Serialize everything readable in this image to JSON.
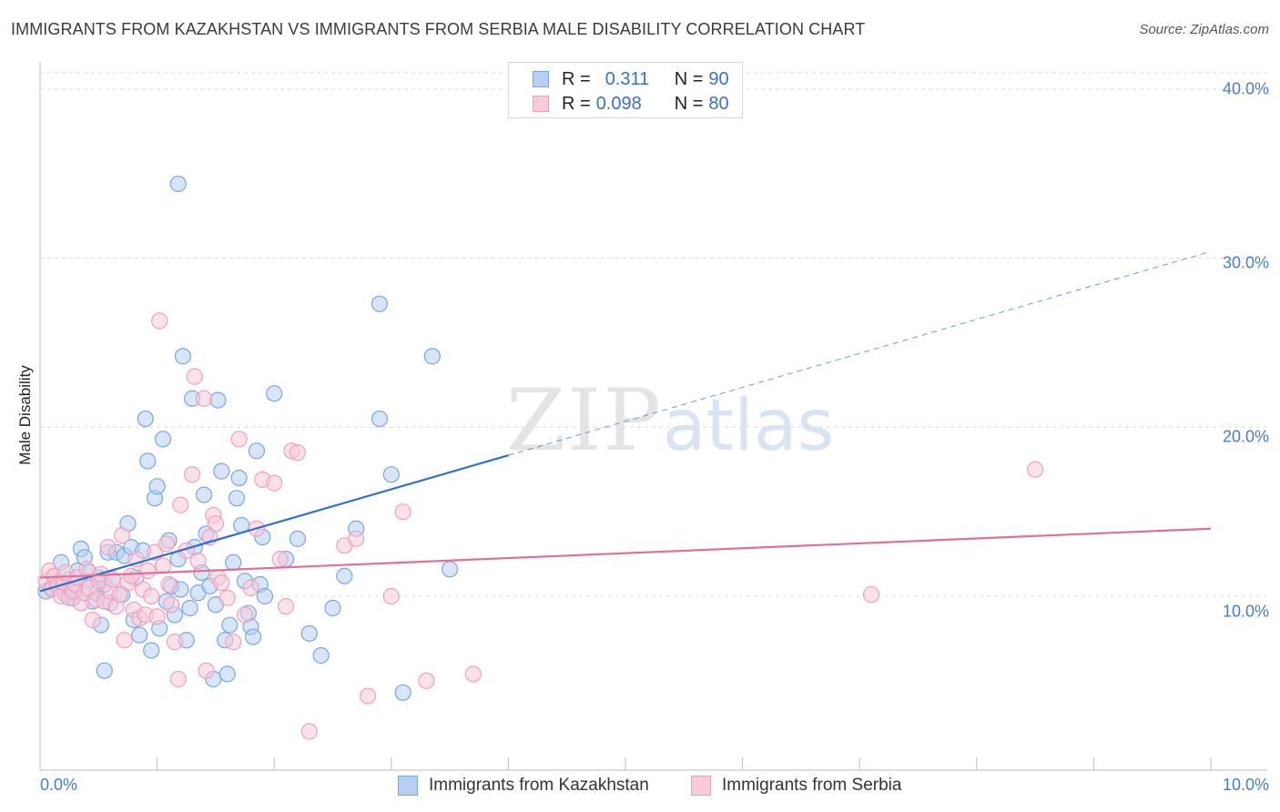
{
  "chart_data": {
    "type": "scatter",
    "title": "IMMIGRANTS FROM KAZAKHSTAN VS IMMIGRANTS FROM SERBIA MALE DISABILITY CORRELATION CHART",
    "source": "Source: ZipAtlas.com",
    "ylabel": "Male Disability",
    "xlim": [
      0,
      10
    ],
    "ylim": [
      0,
      40
    ],
    "x_tick_labels": [
      "0.0%",
      "10.0%"
    ],
    "y_tick_labels": [
      "10.0%",
      "20.0%",
      "30.0%",
      "40.0%"
    ],
    "y_ticks": [
      10,
      20,
      30,
      40
    ],
    "watermark": {
      "zip": "ZIP",
      "atlas": "atlas"
    },
    "legend": {
      "r_label": "R =",
      "n_label": "N =",
      "entries": [
        {
          "r": "0.311",
          "n": "90"
        },
        {
          "r": "0.098",
          "n": "80"
        }
      ]
    },
    "series": [
      {
        "name": "Immigrants from Kazakhstan",
        "color": "#7aa6e0",
        "fill": "#b7cff0",
        "trend_color": "#2f6fce",
        "trend": {
          "x0": 0,
          "y0": 10.3,
          "x1": 10,
          "y1": 30.4,
          "solid_until": 4.0
        },
        "points": [
          [
            0.05,
            10.3
          ],
          [
            0.1,
            10.5
          ],
          [
            0.12,
            11.2
          ],
          [
            0.15,
            10.8
          ],
          [
            0.18,
            12.0
          ],
          [
            0.2,
            10.6
          ],
          [
            0.22,
            10.1
          ],
          [
            0.25,
            11.0
          ],
          [
            0.28,
            9.9
          ],
          [
            0.3,
            10.4
          ],
          [
            0.32,
            11.5
          ],
          [
            0.35,
            12.8
          ],
          [
            0.38,
            12.3
          ],
          [
            0.4,
            10.9
          ],
          [
            0.42,
            11.4
          ],
          [
            0.45,
            9.7
          ],
          [
            0.48,
            10.2
          ],
          [
            0.5,
            11.1
          ],
          [
            0.52,
            8.3
          ],
          [
            0.55,
            10.7
          ],
          [
            0.58,
            12.6
          ],
          [
            0.6,
            9.6
          ],
          [
            0.62,
            11.0
          ],
          [
            0.65,
            12.6
          ],
          [
            0.7,
            10.1
          ],
          [
            0.72,
            12.4
          ],
          [
            0.75,
            14.3
          ],
          [
            0.78,
            12.9
          ],
          [
            0.8,
            8.6
          ],
          [
            0.82,
            11.1
          ],
          [
            0.85,
            7.7
          ],
          [
            0.88,
            12.7
          ],
          [
            0.9,
            20.5
          ],
          [
            0.92,
            18.0
          ],
          [
            0.95,
            6.8
          ],
          [
            0.98,
            15.8
          ],
          [
            1.0,
            16.5
          ],
          [
            1.02,
            8.1
          ],
          [
            1.05,
            19.3
          ],
          [
            1.08,
            9.7
          ],
          [
            1.1,
            13.3
          ],
          [
            1.12,
            10.6
          ],
          [
            1.15,
            8.9
          ],
          [
            1.18,
            12.2
          ],
          [
            1.2,
            10.4
          ],
          [
            1.22,
            24.2
          ],
          [
            1.25,
            7.4
          ],
          [
            1.28,
            9.3
          ],
          [
            1.3,
            21.7
          ],
          [
            1.32,
            12.9
          ],
          [
            1.35,
            10.2
          ],
          [
            1.38,
            11.4
          ],
          [
            1.4,
            16.0
          ],
          [
            1.42,
            13.7
          ],
          [
            1.45,
            10.6
          ],
          [
            1.48,
            5.1
          ],
          [
            1.5,
            9.5
          ],
          [
            1.52,
            21.6
          ],
          [
            1.55,
            17.4
          ],
          [
            1.58,
            7.4
          ],
          [
            1.6,
            5.4
          ],
          [
            1.62,
            8.3
          ],
          [
            1.65,
            12.0
          ],
          [
            1.68,
            15.8
          ],
          [
            1.7,
            17.0
          ],
          [
            1.72,
            14.2
          ],
          [
            1.75,
            10.9
          ],
          [
            1.78,
            9.0
          ],
          [
            1.8,
            8.2
          ],
          [
            1.82,
            7.6
          ],
          [
            1.85,
            18.6
          ],
          [
            1.88,
            10.7
          ],
          [
            1.9,
            13.5
          ],
          [
            1.92,
            10.0
          ],
          [
            2.0,
            22.0
          ],
          [
            2.1,
            12.2
          ],
          [
            2.2,
            13.4
          ],
          [
            2.3,
            7.8
          ],
          [
            2.4,
            6.5
          ],
          [
            2.5,
            9.3
          ],
          [
            2.6,
            11.2
          ],
          [
            2.7,
            14.0
          ],
          [
            3.0,
            17.2
          ],
          [
            3.1,
            4.3
          ],
          [
            3.5,
            11.6
          ],
          [
            0.55,
            5.6
          ],
          [
            1.18,
            34.4
          ],
          [
            2.9,
            27.3
          ],
          [
            3.35,
            24.2
          ],
          [
            2.9,
            20.5
          ]
        ]
      },
      {
        "name": "Immigrants from Serbia",
        "color": "#f0a0bc",
        "fill": "#f8cbd9",
        "trend_color": "#e07098",
        "trend": {
          "x0": 0,
          "y0": 11.1,
          "x1": 10,
          "y1": 14.0,
          "solid_until": 10.0
        },
        "points": [
          [
            0.05,
            10.9
          ],
          [
            0.08,
            11.5
          ],
          [
            0.1,
            10.4
          ],
          [
            0.12,
            11.2
          ],
          [
            0.15,
            10.6
          ],
          [
            0.18,
            10.0
          ],
          [
            0.2,
            10.8
          ],
          [
            0.22,
            11.4
          ],
          [
            0.25,
            9.9
          ],
          [
            0.28,
            10.3
          ],
          [
            0.3,
            10.7
          ],
          [
            0.32,
            11.1
          ],
          [
            0.35,
            9.6
          ],
          [
            0.38,
            10.2
          ],
          [
            0.4,
            11.6
          ],
          [
            0.42,
            10.5
          ],
          [
            0.45,
            8.6
          ],
          [
            0.48,
            9.8
          ],
          [
            0.5,
            10.9
          ],
          [
            0.52,
            11.3
          ],
          [
            0.55,
            9.7
          ],
          [
            0.58,
            12.9
          ],
          [
            0.6,
            10.3
          ],
          [
            0.62,
            11.0
          ],
          [
            0.65,
            9.4
          ],
          [
            0.68,
            10.1
          ],
          [
            0.7,
            13.6
          ],
          [
            0.72,
            7.4
          ],
          [
            0.75,
            10.8
          ],
          [
            0.78,
            11.2
          ],
          [
            0.8,
            9.2
          ],
          [
            0.82,
            12.2
          ],
          [
            0.85,
            8.7
          ],
          [
            0.88,
            10.4
          ],
          [
            0.9,
            8.9
          ],
          [
            0.92,
            11.5
          ],
          [
            0.95,
            10.0
          ],
          [
            0.98,
            12.6
          ],
          [
            1.0,
            8.8
          ],
          [
            1.02,
            26.3
          ],
          [
            1.05,
            11.8
          ],
          [
            1.08,
            13.1
          ],
          [
            1.1,
            10.7
          ],
          [
            1.12,
            9.5
          ],
          [
            1.15,
            7.3
          ],
          [
            1.18,
            5.1
          ],
          [
            1.2,
            15.4
          ],
          [
            1.25,
            12.7
          ],
          [
            1.3,
            17.2
          ],
          [
            1.32,
            23.0
          ],
          [
            1.35,
            12.1
          ],
          [
            1.4,
            21.7
          ],
          [
            1.42,
            5.6
          ],
          [
            1.45,
            13.5
          ],
          [
            1.48,
            14.8
          ],
          [
            1.5,
            14.3
          ],
          [
            1.52,
            11.1
          ],
          [
            1.55,
            10.8
          ],
          [
            1.6,
            9.9
          ],
          [
            1.65,
            7.3
          ],
          [
            1.7,
            19.3
          ],
          [
            1.75,
            8.9
          ],
          [
            1.8,
            10.5
          ],
          [
            1.85,
            14.0
          ],
          [
            1.9,
            16.9
          ],
          [
            2.0,
            16.7
          ],
          [
            2.05,
            12.2
          ],
          [
            2.1,
            9.4
          ],
          [
            2.15,
            18.6
          ],
          [
            2.2,
            18.5
          ],
          [
            2.3,
            2.0
          ],
          [
            2.6,
            13.0
          ],
          [
            2.7,
            13.4
          ],
          [
            2.8,
            4.1
          ],
          [
            3.0,
            10.0
          ],
          [
            3.1,
            15.0
          ],
          [
            3.3,
            5.0
          ],
          [
            3.7,
            5.4
          ],
          [
            7.1,
            10.1
          ],
          [
            8.5,
            17.5
          ]
        ]
      }
    ]
  }
}
